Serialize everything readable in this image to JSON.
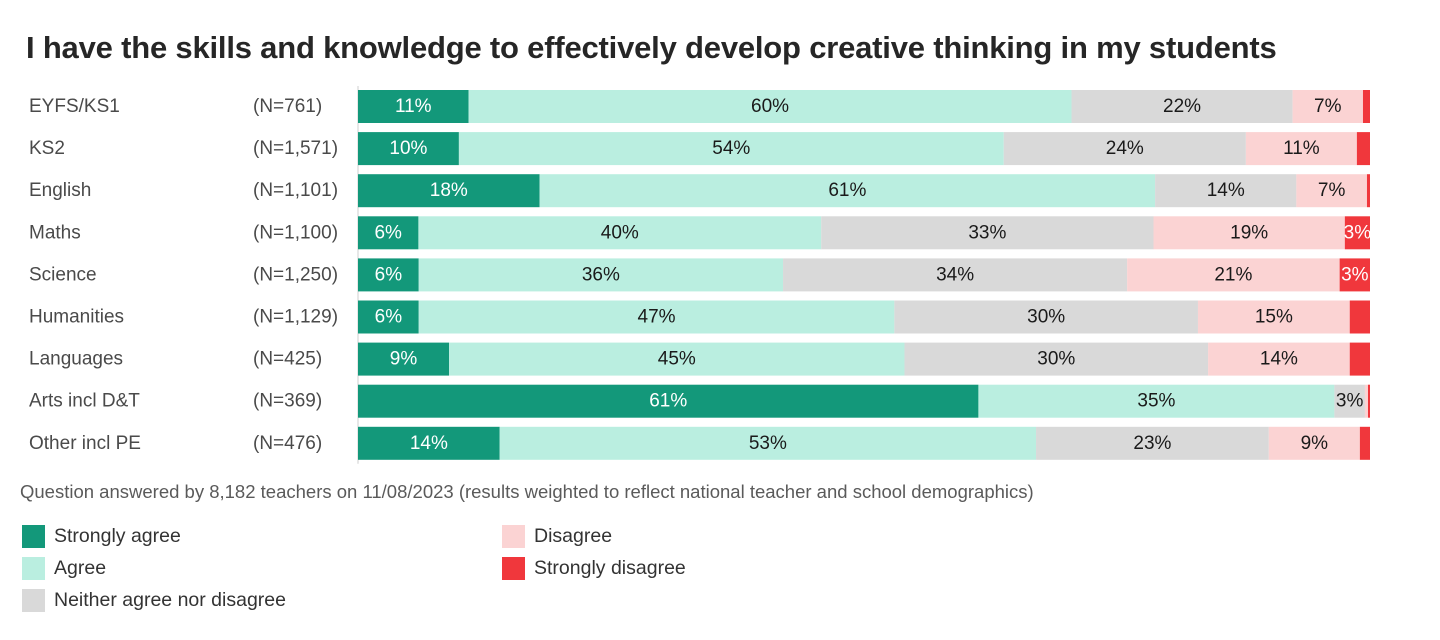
{
  "chart_data": {
    "type": "bar",
    "orientation": "horizontal",
    "stacked": true,
    "normalized_percent": true,
    "title": "I have the skills and knowledge to effectively develop creative thinking in my students",
    "categories": [
      "EYFS/KS1",
      "KS2",
      "English",
      "Maths",
      "Science",
      "Humanities",
      "Languages",
      "Arts incl D&T",
      "Other incl PE"
    ],
    "sample_sizes": [
      "(N=761)",
      "(N=1,571)",
      "(N=1,101)",
      "(N=1,100)",
      "(N=1,250)",
      "(N=1,129)",
      "(N=425)",
      "(N=369)",
      "(N=476)"
    ],
    "series": [
      {
        "name": "Strongly agree",
        "color": "#13987a",
        "text_color": "#ffffff",
        "values": [
          11,
          10,
          18,
          6,
          6,
          6,
          9,
          61,
          14
        ],
        "labels": [
          "11%",
          "10%",
          "18%",
          "6%",
          "6%",
          "6%",
          "9%",
          "61%",
          "14%"
        ]
      },
      {
        "name": "Agree",
        "color": "#baeee0",
        "text_color": "#1a1a1a",
        "values": [
          60,
          54,
          61,
          40,
          36,
          47,
          45,
          35,
          53
        ],
        "labels": [
          "60%",
          "54%",
          "61%",
          "40%",
          "36%",
          "47%",
          "45%",
          "35%",
          "53%"
        ]
      },
      {
        "name": "Neither agree nor disagree",
        "color": "#d9d9d9",
        "text_color": "#1a1a1a",
        "values": [
          22,
          24,
          14,
          33,
          34,
          30,
          30,
          3,
          23
        ],
        "labels": [
          "22%",
          "24%",
          "14%",
          "33%",
          "34%",
          "30%",
          "30%",
          "3%",
          "23%"
        ]
      },
      {
        "name": "Disagree",
        "color": "#fbd3d3",
        "text_color": "#1a1a1a",
        "values": [
          7,
          11,
          7,
          19,
          21,
          15,
          14,
          0.3,
          9
        ],
        "labels": [
          "7%",
          "11%",
          "7%",
          "19%",
          "21%",
          "15%",
          "14%",
          "",
          "9%"
        ]
      },
      {
        "name": "Strongly disagree",
        "color": "#f0373c",
        "text_color": "#ffffff",
        "values": [
          0.7,
          1.3,
          0.3,
          2.5,
          3,
          2,
          2,
          0.2,
          1
        ],
        "labels": [
          "",
          "",
          "",
          "3%",
          "3%",
          "",
          "",
          "",
          ""
        ]
      }
    ],
    "xlim": [
      0,
      100
    ],
    "footnote": "Question answered by 8,182 teachers on 11/08/2023 (results weighted to reflect national teacher and school demographics)",
    "legend": [
      {
        "name": "Strongly agree",
        "color": "#13987a"
      },
      {
        "name": "Agree",
        "color": "#baeee0"
      },
      {
        "name": "Neither agree nor disagree",
        "color": "#d9d9d9"
      },
      {
        "name": "Disagree",
        "color": "#fbd3d3"
      },
      {
        "name": "Strongly disagree",
        "color": "#f0373c"
      }
    ]
  }
}
